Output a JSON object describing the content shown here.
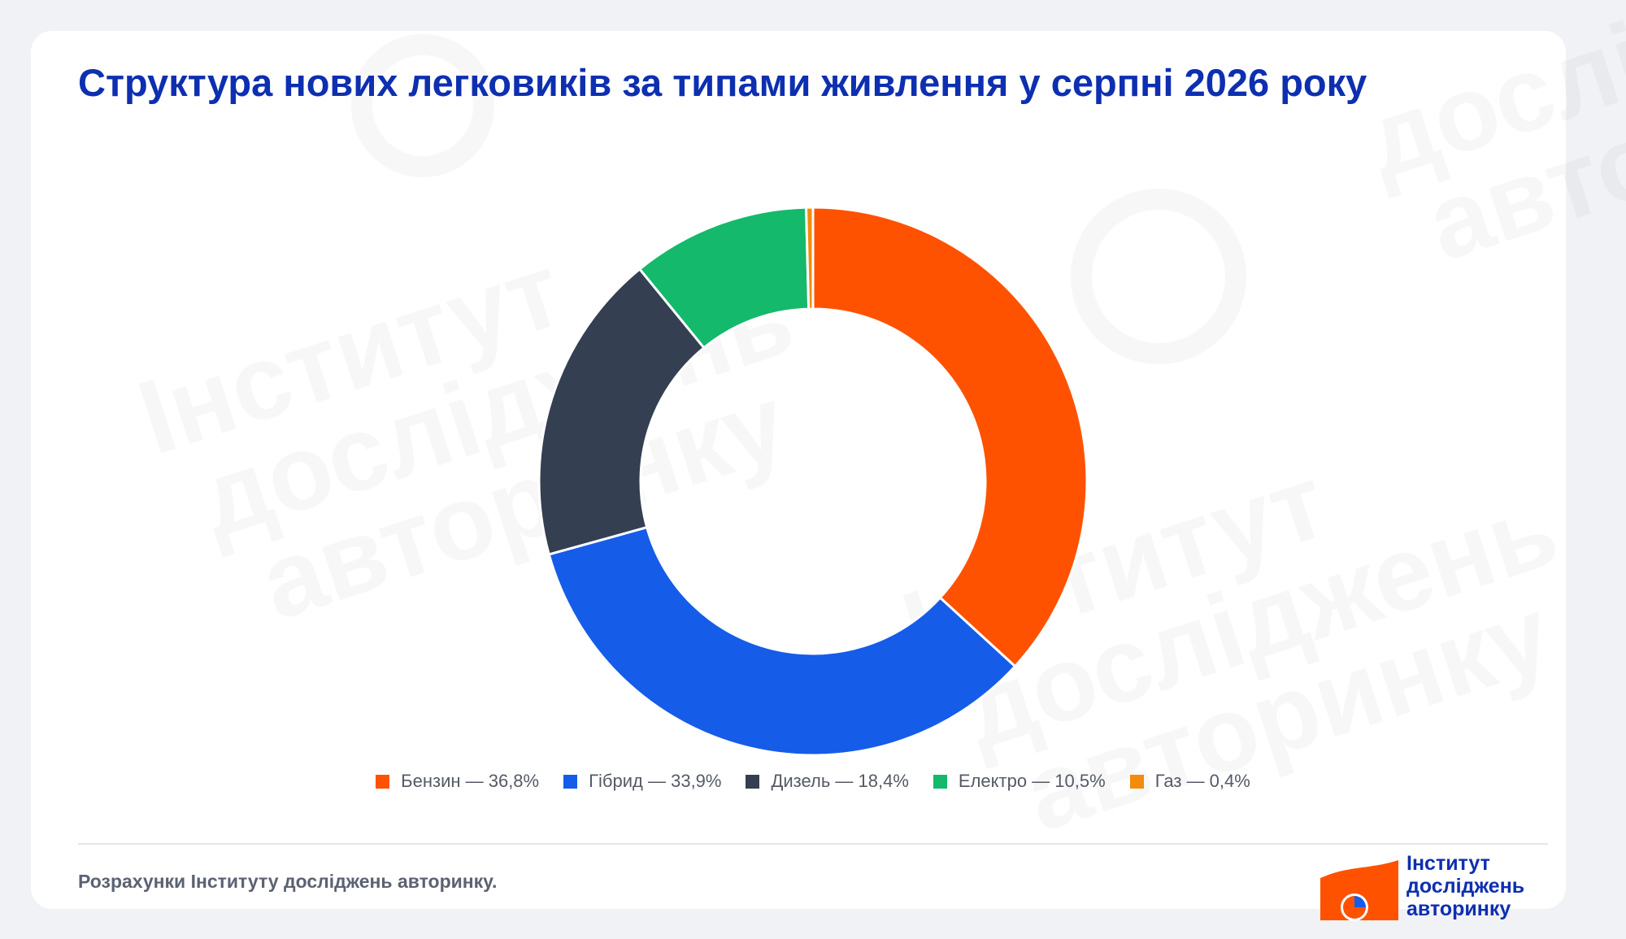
{
  "chart_data": {
    "type": "pie",
    "variant": "donut",
    "title": "Структура нових легковиків за типами живлення у серпні 2026 року",
    "categories": [
      "Бензин",
      "Гібрид",
      "Дизель",
      "Електро",
      "Газ"
    ],
    "values": [
      36.8,
      33.9,
      18.4,
      10.5,
      0.4
    ],
    "unit": "%",
    "colors": [
      "#ff5200",
      "#155ce8",
      "#353f52",
      "#14b96c",
      "#f28c0a"
    ],
    "legend": {
      "position": "bottom",
      "items": [
        {
          "label": "Бензин — 36,8%",
          "color": "#ff5200"
        },
        {
          "label": "Гібрид — 33,9%",
          "color": "#155ce8"
        },
        {
          "label": "Дизель — 18,4%",
          "color": "#353f52"
        },
        {
          "label": "Електро — 10,5%",
          "color": "#14b96c"
        },
        {
          "label": "Газ — 0,4%",
          "color": "#f28c0a"
        }
      ]
    }
  },
  "footer": {
    "source": "Розрахунки Інституту досліджень авторинку."
  },
  "logo": {
    "line1": "Інститут",
    "line2": "досліджень",
    "line3": "авторинку",
    "text_color": "#0d2fb0",
    "shape_color": "#ff5200"
  },
  "watermark": {
    "lines": [
      "Інститут",
      "досліджень",
      "авторинку"
    ]
  }
}
